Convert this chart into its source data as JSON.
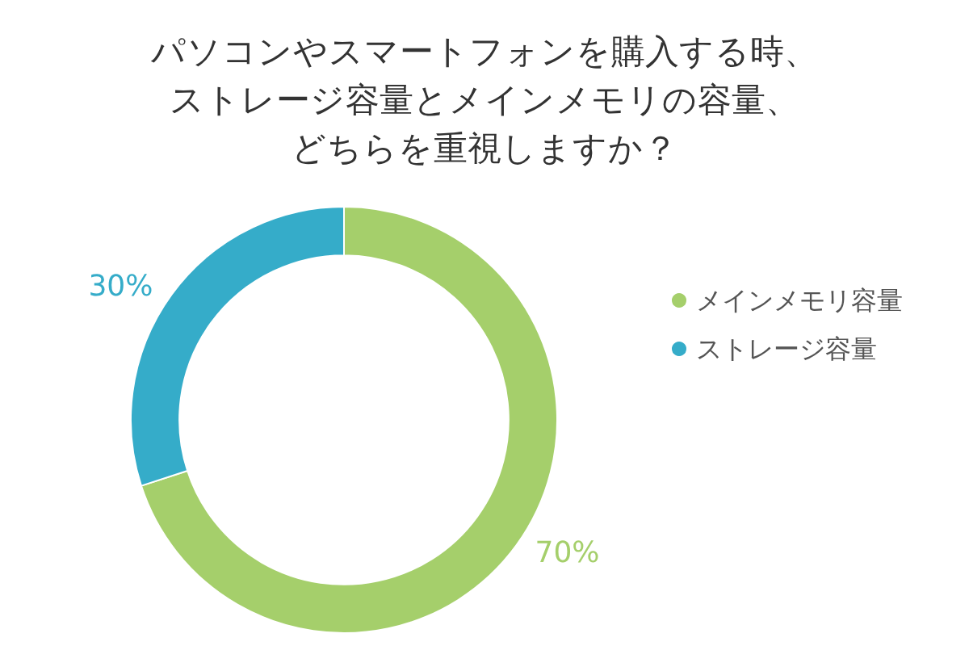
{
  "chart_data": {
    "type": "donut",
    "title": "パソコンやスマートフォンを購入する時、ストレージ容量とメインメモリの容量、どちらを重視しますか？",
    "categories": [
      "メインメモリ容量",
      "ストレージ容量"
    ],
    "values": [
      70,
      30
    ],
    "colors": [
      "#a5cf6b",
      "#35acc9"
    ],
    "value_labels": [
      "70%",
      "30%"
    ],
    "legend": "right"
  }
}
